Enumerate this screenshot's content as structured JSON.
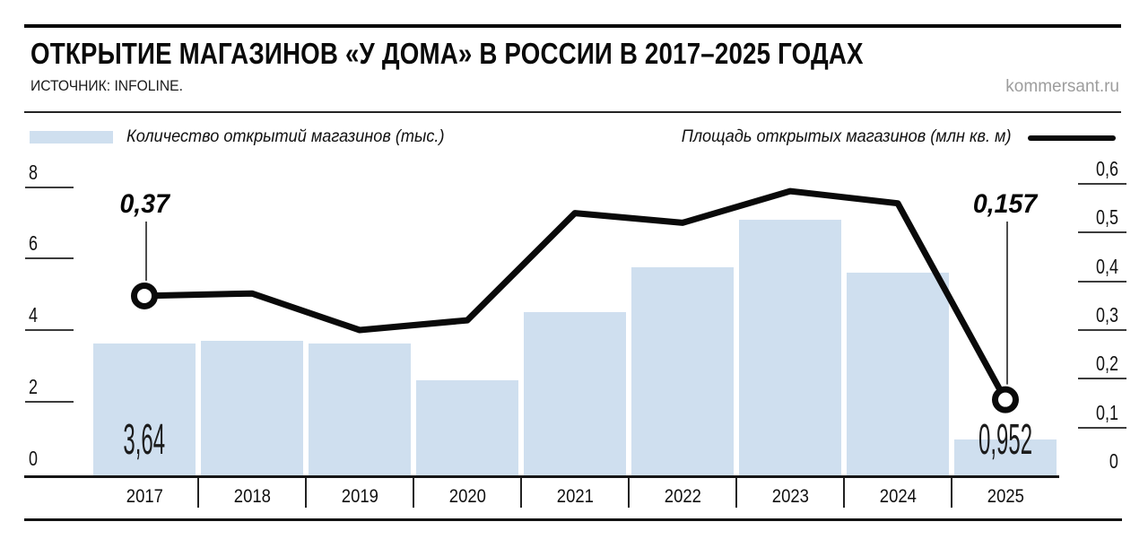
{
  "header": {
    "title": "ОТКРЫТИЕ МАГАЗИНОВ «У ДОМА» В РОССИИ В 2017–2025 ГОДАХ",
    "source": "ИСТОЧНИК: INFOLINE.",
    "watermark": "kommersant.ru"
  },
  "legend": {
    "bars_label": "Количество открытий магазинов (тыс.)",
    "line_label": "Площадь открытых магазинов (млн кв. м)"
  },
  "colors": {
    "bar_fill": "#cfdfef",
    "line": "#0a0a0a",
    "text": "#0a0a0a",
    "watermark_gray": "#9d9d9d"
  },
  "chart_data": {
    "type": "bar",
    "title": "ОТКРЫТИЕ МАГАЗИНОВ «У ДОМА» В РОССИИ В 2017–2025 ГОДАХ",
    "categories": [
      "2017",
      "2018",
      "2019",
      "2020",
      "2021",
      "2022",
      "2023",
      "2024",
      "2025"
    ],
    "series": [
      {
        "name": "Количество открытий магазинов (тыс.)",
        "type": "bar",
        "axis": "left",
        "values": [
          3.64,
          3.7,
          3.62,
          2.6,
          4.5,
          5.75,
          7.1,
          5.6,
          0.952
        ],
        "value_labels": {
          "0": "3,64",
          "8": "0,952"
        }
      },
      {
        "name": "Площадь открытых магазинов (млн кв. м)",
        "type": "line",
        "axis": "right",
        "values": [
          0.37,
          0.375,
          0.3,
          0.32,
          0.54,
          0.52,
          0.585,
          0.56,
          0.157
        ],
        "annotations": [
          {
            "index": 0,
            "label": "0,37"
          },
          {
            "index": 8,
            "label": "0,157"
          }
        ]
      }
    ],
    "left_axis": {
      "min": 0,
      "max": 8,
      "tick_values": [
        8,
        6,
        4,
        2,
        0
      ],
      "tick_labels": [
        "8",
        "6",
        "4",
        "2",
        "0"
      ]
    },
    "right_axis": {
      "min": 0,
      "max": 0.6,
      "tick_values": [
        0.6,
        0.5,
        0.4,
        0.3,
        0.2,
        0.1,
        0
      ],
      "tick_labels": [
        "0,6",
        "0,5",
        "0,4",
        "0,3",
        "0,2",
        "0,1",
        "0"
      ]
    },
    "grid": false,
    "legend_position": "top"
  }
}
